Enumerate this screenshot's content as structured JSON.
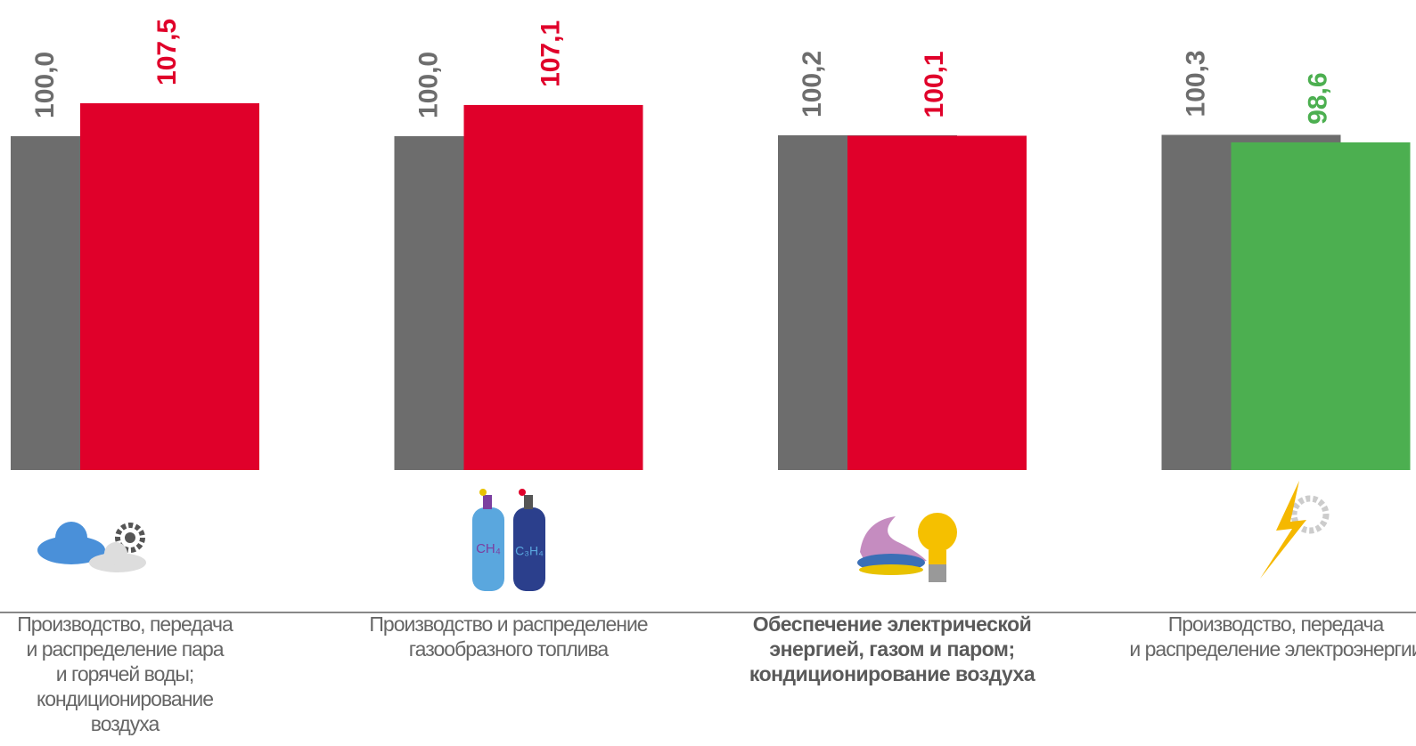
{
  "chart_data": {
    "type": "bar",
    "categories": [
      [
        "Производство, передача",
        "и распределение пара",
        "и горячей воды;",
        "кондиционирование",
        "воздуха"
      ],
      [
        "Производство и распределение",
        "газообразного топлива"
      ],
      [
        "Обеспечение электрической",
        "энергией, газом и паром;",
        "кондиционирование воздуха"
      ],
      [
        "Производство, передача",
        "и распределение электроэнергии"
      ]
    ],
    "series": [
      {
        "color": "#6d6d6d",
        "values": [
          100.0,
          100.0,
          100.2,
          100.3
        ],
        "value_labels": [
          "100,0",
          "100,0",
          "100,2",
          "100,3"
        ]
      },
      {
        "colors": [
          "#e0002a",
          "#e0002a",
          "#e0002a",
          "#4caf50"
        ],
        "values": [
          107.5,
          107.1,
          100.1,
          98.6
        ],
        "value_labels": [
          "107,5",
          "107,1",
          "100,1",
          "98,6"
        ]
      }
    ],
    "highlight_category": 2,
    "icon_texts": [
      "CH₄",
      "C₃H₄"
    ],
    "ylim": [
      24,
      131
    ]
  }
}
